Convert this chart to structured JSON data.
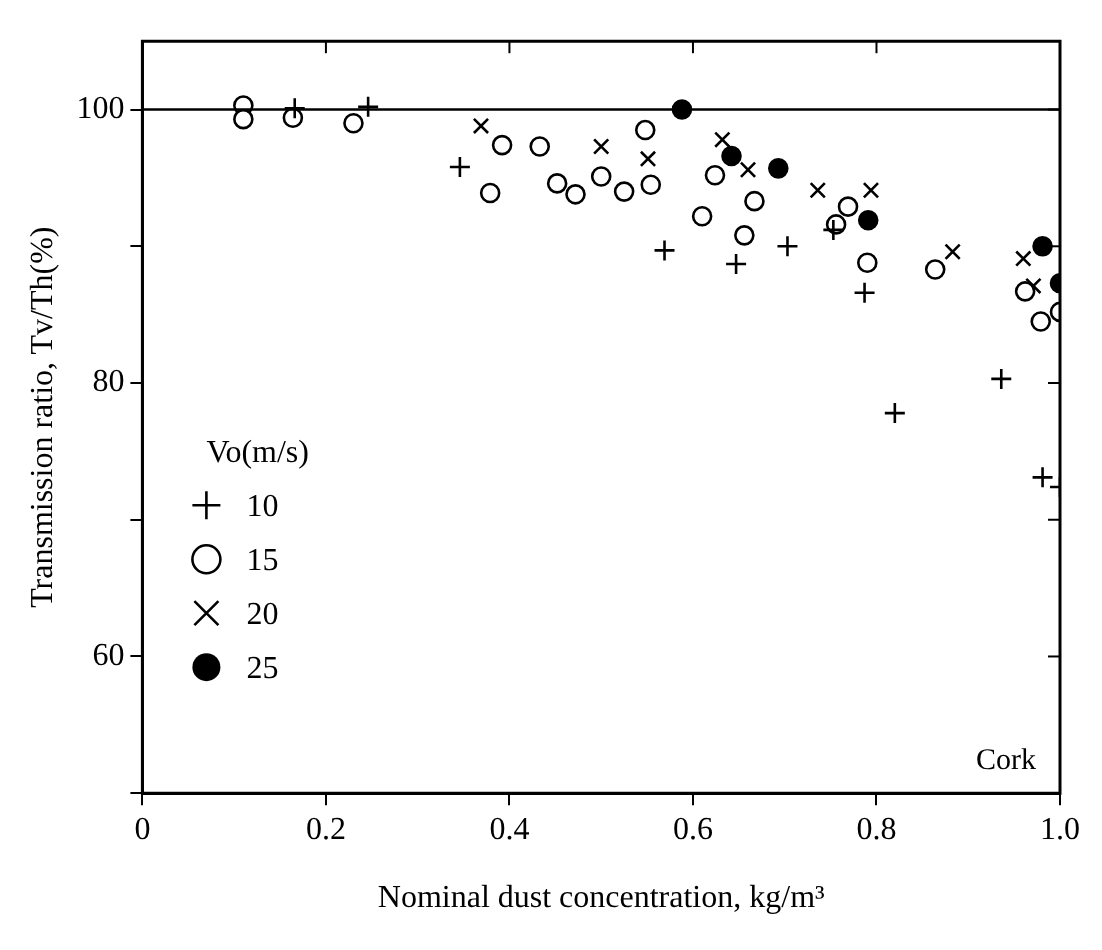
{
  "chart_data": {
    "type": "scatter",
    "xlabel": "Nominal dust concentration, kg/m³",
    "ylabel": "Transmission ratio, Tv/Th(%)",
    "legend_title": "Vo(m/s)",
    "legend": "bottom left",
    "grid": false,
    "xlim": [
      0,
      1.0
    ],
    "xticks": [
      0,
      0.2,
      0.4,
      0.6,
      0.8,
      {
        "value": 1,
        "label": "1.0"
      }
    ],
    "ylim": [
      50,
      105
    ],
    "yticks": [
      {
        "value": 50,
        "label": null
      },
      60,
      {
        "value": 70,
        "label": null
      },
      80,
      {
        "value": 90,
        "label": null
      },
      100
    ],
    "ref_lines": [
      {
        "axis": "y",
        "value": 100,
        "color": "#000000"
      }
    ],
    "annotations": [
      "Cork"
    ],
    "series": [
      {
        "name": "10",
        "color": "#000000",
        "marker": "cross",
        "x": [
          0.166,
          0.246,
          0.346,
          0.569,
          0.647,
          0.703,
          0.753,
          0.787,
          0.82,
          0.936,
          0.981,
          1.0
        ],
        "values": [
          100.1,
          100.2,
          95.8,
          89.7,
          88.7,
          90.0,
          91.2,
          86.6,
          77.8,
          80.3,
          73.1,
          72.4
        ]
      },
      {
        "name": "15",
        "color": "#000000",
        "marker": "circle_open",
        "x": [
          0.11,
          0.11,
          0.164,
          0.23,
          0.379,
          0.392,
          0.433,
          0.452,
          0.472,
          0.5,
          0.525,
          0.548,
          0.554,
          0.61,
          0.624,
          0.656,
          0.667,
          0.756,
          0.769,
          0.79,
          0.864,
          0.962,
          0.979,
          1.0
        ],
        "values": [
          100.3,
          99.3,
          99.4,
          99.0,
          93.9,
          97.4,
          97.3,
          94.6,
          93.8,
          95.1,
          94.0,
          98.5,
          94.5,
          92.2,
          95.2,
          90.8,
          93.3,
          91.6,
          92.9,
          88.8,
          88.3,
          86.7,
          84.5,
          85.2
        ]
      },
      {
        "name": "20",
        "color": "#000000",
        "marker": "x",
        "x": [
          0.369,
          0.5,
          0.551,
          0.632,
          0.66,
          0.736,
          0.794,
          0.883,
          0.96,
          0.971
        ],
        "values": [
          98.8,
          97.3,
          96.4,
          97.8,
          95.6,
          94.1,
          94.1,
          89.6,
          89.1,
          87.1
        ]
      },
      {
        "name": "25",
        "color": "#000000",
        "marker": "circle",
        "x": [
          0.588,
          0.642,
          0.693,
          0.791,
          0.981,
          1.0
        ],
        "values": [
          100.0,
          96.6,
          95.7,
          91.9,
          90.0,
          87.3
        ]
      }
    ]
  }
}
